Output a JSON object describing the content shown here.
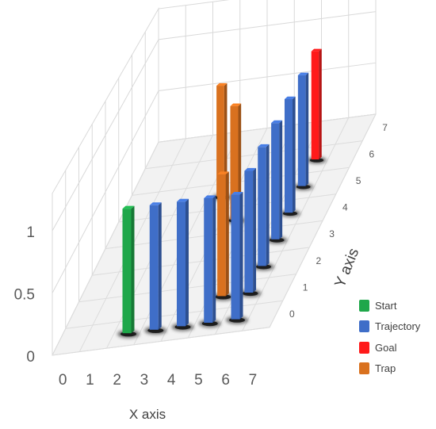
{
  "chart_data": {
    "type": "bar3d",
    "x_axis": {
      "label": "X axis",
      "ticks": [
        "0",
        "1",
        "2",
        "3",
        "4",
        "5",
        "6",
        "7"
      ]
    },
    "y_axis": {
      "label": "Y axis",
      "ticks": [
        "0",
        "1",
        "2",
        "3",
        "4",
        "5",
        "6",
        "7"
      ]
    },
    "z_axis": {
      "ticks": [
        "0",
        "0.5",
        "1"
      ],
      "range": [
        0,
        1.3
      ]
    },
    "series": [
      {
        "name": "Start",
        "color": "#1fa74a",
        "points": [
          {
            "x": 2,
            "y": 0,
            "z": 1
          }
        ]
      },
      {
        "name": "Trajectory",
        "color": "#3f6ec8",
        "points": [
          {
            "x": 3,
            "y": 0,
            "z": 1
          },
          {
            "x": 4,
            "y": 0,
            "z": 1
          },
          {
            "x": 5,
            "y": 0,
            "z": 1
          },
          {
            "x": 6,
            "y": 0,
            "z": 1
          },
          {
            "x": 6,
            "y": 1,
            "z": 1
          },
          {
            "x": 6,
            "y": 2,
            "z": 1
          },
          {
            "x": 6,
            "y": 3,
            "z": 1
          },
          {
            "x": 6,
            "y": 4,
            "z": 1
          },
          {
            "x": 6,
            "y": 5,
            "z": 1
          }
        ]
      },
      {
        "name": "Goal",
        "color": "#ff1a1a",
        "points": [
          {
            "x": 6,
            "y": 6,
            "z": 1
          }
        ]
      },
      {
        "name": "Trap",
        "color": "#d9711f",
        "points": [
          {
            "x": 5,
            "y": 1,
            "z": 1
          },
          {
            "x": 4,
            "y": 4,
            "z": 1
          },
          {
            "x": 3,
            "y": 5,
            "z": 1
          }
        ]
      }
    ],
    "grid": true,
    "legend_position": "bottom-right"
  }
}
